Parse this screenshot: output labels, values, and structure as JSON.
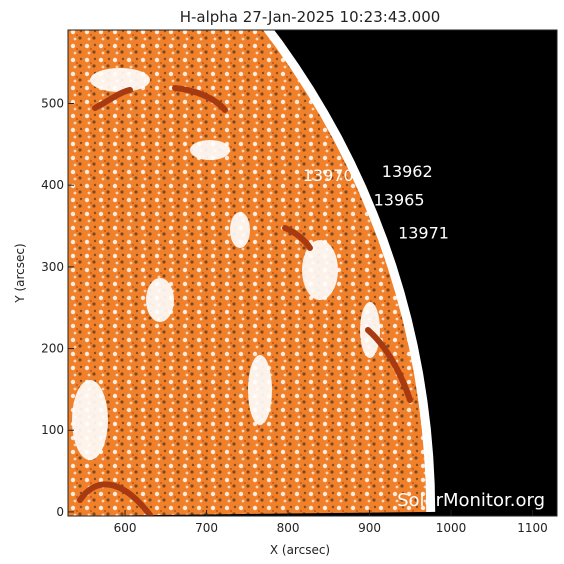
{
  "title": "H-alpha 27-Jan-2025 10:23:43.000",
  "x_axis": {
    "label": "X (arcsec)",
    "ticks": [
      "600",
      "700",
      "800",
      "900",
      "1000",
      "1100"
    ]
  },
  "y_axis": {
    "label": "Y (arcsec)",
    "ticks": [
      "0",
      "100",
      "200",
      "300",
      "400",
      "500"
    ]
  },
  "regions": [
    {
      "number": "13970",
      "x_arcsec": 818,
      "y_arcsec": 405
    },
    {
      "number": "13962",
      "x_arcsec": 915,
      "y_arcsec": 410
    },
    {
      "number": "13965",
      "x_arcsec": 905,
      "y_arcsec": 375
    },
    {
      "number": "13971",
      "x_arcsec": 935,
      "y_arcsec": 335
    }
  ],
  "watermark": "SolarMonitor.org",
  "colors": {
    "disk": "#f0802a",
    "disk_dark": "#c04a10",
    "space": "#000000",
    "limb": "#ffffff",
    "filament": "#a83a12"
  }
}
